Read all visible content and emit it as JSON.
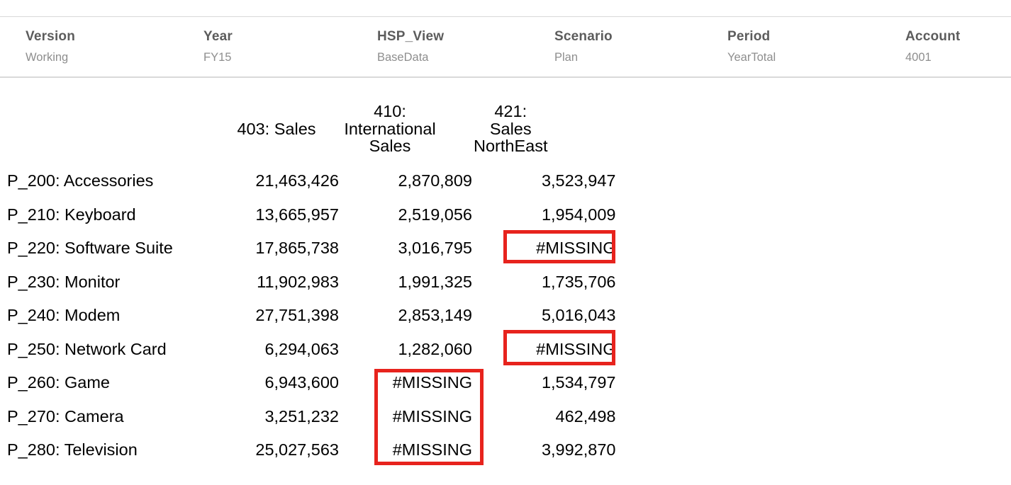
{
  "pov": {
    "items": [
      {
        "dimension": "Version",
        "member": "Working"
      },
      {
        "dimension": "Year",
        "member": "FY15"
      },
      {
        "dimension": "HSP_View",
        "member": "BaseData"
      },
      {
        "dimension": "Scenario",
        "member": "Plan"
      },
      {
        "dimension": "Period",
        "member": "YearTotal"
      },
      {
        "dimension": "Account",
        "member": "4001"
      }
    ]
  },
  "grid": {
    "column_headers": [
      "403: Sales",
      "410: International Sales",
      "421: Sales NorthEast"
    ],
    "rows": [
      {
        "label": "P_200: Accessories",
        "values": [
          "21,463,426",
          "2,870,809",
          "3,523,947"
        ]
      },
      {
        "label": "P_210: Keyboard",
        "values": [
          "13,665,957",
          "2,519,056",
          "1,954,009"
        ]
      },
      {
        "label": "P_220: Software Suite",
        "values": [
          "17,865,738",
          "3,016,795",
          "#MISSING"
        ]
      },
      {
        "label": "P_230: Monitor",
        "values": [
          "11,902,983",
          "1,991,325",
          "1,735,706"
        ]
      },
      {
        "label": "P_240: Modem",
        "values": [
          "27,751,398",
          "2,853,149",
          "5,016,043"
        ]
      },
      {
        "label": "P_250: Network Card",
        "values": [
          "6,294,063",
          "1,282,060",
          "#MISSING"
        ]
      },
      {
        "label": "P_260: Game",
        "values": [
          "6,943,600",
          "#MISSING",
          "1,534,797"
        ]
      },
      {
        "label": "P_270: Camera",
        "values": [
          "3,251,232",
          "#MISSING",
          "462,498"
        ]
      },
      {
        "label": "P_280: Television",
        "values": [
          "25,027,563",
          "#MISSING",
          "3,992,870"
        ]
      }
    ],
    "missing_value_text": "#MISSING"
  },
  "annotations": {
    "highlighted_cells": [
      {
        "row": "P_220: Software Suite",
        "column": "421: Sales NorthEast",
        "value": "#MISSING"
      },
      {
        "row": "P_250: Network Card",
        "column": "421: Sales NorthEast",
        "value": "#MISSING"
      },
      {
        "rows": [
          "P_260: Game",
          "P_270: Camera",
          "P_280: Television"
        ],
        "column": "410: International Sales",
        "value": "#MISSING"
      }
    ]
  },
  "colors": {
    "pov_label": "#5c5c5c",
    "pov_value": "#8e8e8e",
    "divider": "#d9d9d9",
    "grid_text": "#000000",
    "annotation_red": "#e7231d"
  }
}
